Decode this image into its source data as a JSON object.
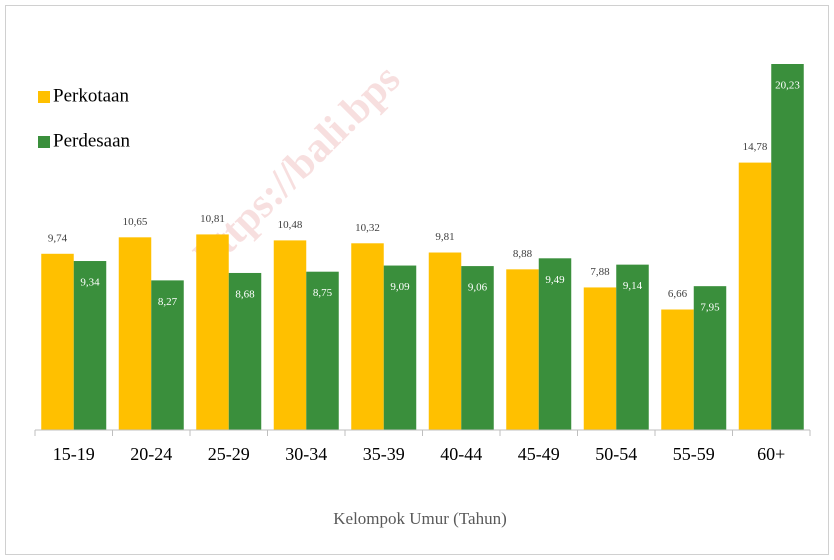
{
  "chart_data": {
    "type": "bar",
    "categories": [
      "15-19",
      "20-24",
      "25-29",
      "30-34",
      "35-39",
      "40-44",
      "45-49",
      "50-54",
      "55-59",
      "60+"
    ],
    "series": [
      {
        "name": "Perkotaan",
        "color": "#ffc000",
        "values": [
          9.74,
          10.65,
          10.81,
          10.48,
          10.32,
          9.81,
          8.88,
          7.88,
          6.66,
          14.78
        ],
        "value_labels": [
          "9,74",
          "10,65",
          "10,81",
          "10,48",
          "10,32",
          "9,81",
          "8,88",
          "7,88",
          "6,66",
          "14,78"
        ]
      },
      {
        "name": "Perdesaan",
        "color": "#3a8f3c",
        "values": [
          9.34,
          8.27,
          8.68,
          8.75,
          9.09,
          9.06,
          9.49,
          9.14,
          7.95,
          20.23
        ],
        "value_labels": [
          "9,34",
          "8,27",
          "8,68",
          "8,75",
          "9,09",
          "9,06",
          "9,49",
          "9,14",
          "7,95",
          "20,23"
        ]
      }
    ],
    "xlabel": "Kelompok Umur (Tahun)",
    "legend": "top-left",
    "watermark": "https://bali.bps"
  }
}
